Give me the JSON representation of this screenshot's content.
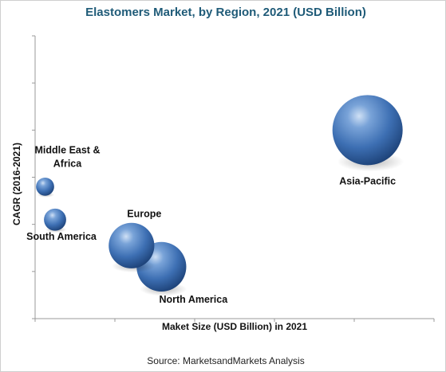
{
  "chart_data": {
    "type": "bubble",
    "title": "Elastomers Market, by Region, 2021 (USD Billion)",
    "xlabel": "Maket Size (USD Billion) in 2021",
    "ylabel": "CAGR (2016-2021)",
    "xlim": [
      0,
      12
    ],
    "ylim": [
      0,
      12
    ],
    "x_ticks": 6,
    "y_ticks": 7,
    "grid": false,
    "bubble_color": "#4f81bd",
    "series": [
      {
        "name": "Asia-Pacific",
        "label_lines": [
          "Asia-Pacific"
        ],
        "x": 10.0,
        "y": 8.0,
        "size": 9.0
      },
      {
        "name": "North America",
        "label_lines": [
          "North America"
        ],
        "x": 3.8,
        "y": 2.2,
        "size": 4.5
      },
      {
        "name": "Europe",
        "label_lines": [
          "Europe"
        ],
        "x": 2.9,
        "y": 3.1,
        "size": 3.8
      },
      {
        "name": "South America",
        "label_lines": [
          "South America"
        ],
        "x": 0.6,
        "y": 4.2,
        "size": 0.9
      },
      {
        "name": "Middle East & Africa",
        "label_lines": [
          "Middle East &",
          "Africa"
        ],
        "x": 0.3,
        "y": 5.6,
        "size": 0.6
      }
    ]
  },
  "source": "Source:  MarketsandMarkets Analysis"
}
